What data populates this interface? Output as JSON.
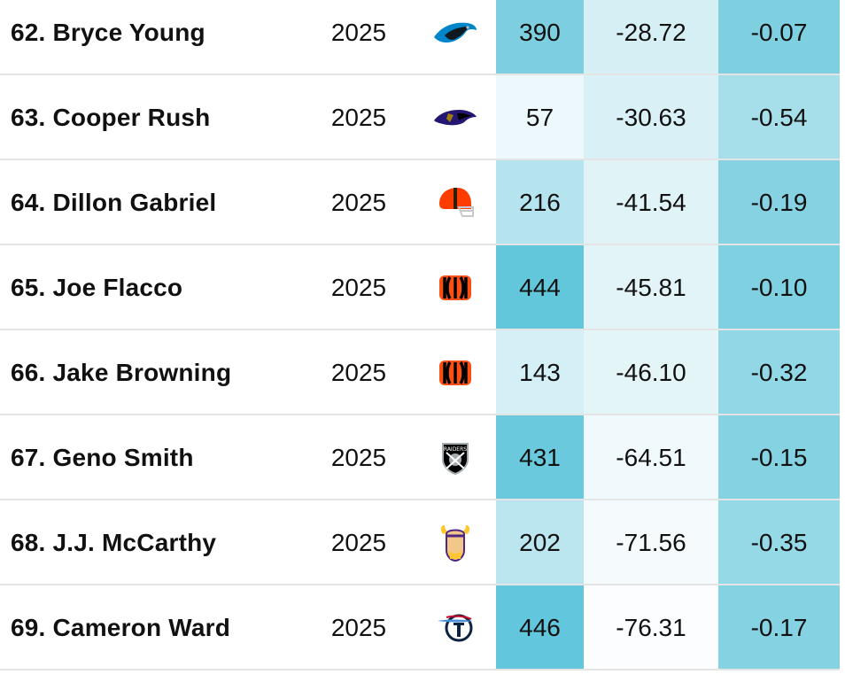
{
  "rows": [
    {
      "name": "62. Bryce Young",
      "season": "2025",
      "team_logo": "panthers-logo",
      "plays": "390",
      "epa": "-28.72",
      "epa_per_play": "-0.07",
      "colors": {
        "plays": "#7dcfe0",
        "epa": "#d6eff5",
        "epa_per_play": "#7ecfe0"
      }
    },
    {
      "name": "63. Cooper Rush",
      "season": "2025",
      "team_logo": "ravens-logo",
      "plays": "57",
      "epa": "-30.63",
      "epa_per_play": "-0.54",
      "colors": {
        "plays": "#ecf8fb",
        "epa": "#d9f0f6",
        "epa_per_play": "#a6dfea"
      }
    },
    {
      "name": "64. Dillon Gabriel",
      "season": "2025",
      "team_logo": "browns-logo",
      "plays": "216",
      "epa": "-41.54",
      "epa_per_play": "-0.19",
      "colors": {
        "plays": "#b5e3ee",
        "epa": "#e0f3f7",
        "epa_per_play": "#86d2e2"
      }
    },
    {
      "name": "65. Joe Flacco",
      "season": "2025",
      "team_logo": "bengals-logo",
      "plays": "444",
      "epa": "-45.81",
      "epa_per_play": "-0.10",
      "colors": {
        "plays": "#63c7dc",
        "epa": "#e3f4f8",
        "epa_per_play": "#7fd0e1"
      }
    },
    {
      "name": "66. Jake Browning",
      "season": "2025",
      "team_logo": "bengals-logo",
      "plays": "143",
      "epa": "-46.10",
      "epa_per_play": "-0.32",
      "colors": {
        "plays": "#d4eff5",
        "epa": "#e4f5f8",
        "epa_per_play": "#92d7e5"
      }
    },
    {
      "name": "67. Geno Smith",
      "season": "2025",
      "team_logo": "raiders-logo",
      "plays": "431",
      "epa": "-64.51",
      "epa_per_play": "-0.15",
      "colors": {
        "plays": "#6ac9dd",
        "epa": "#f0f9fb",
        "epa_per_play": "#84d2e2"
      }
    },
    {
      "name": "68. J.J. McCarthy",
      "season": "2025",
      "team_logo": "vikings-logo",
      "plays": "202",
      "epa": "-71.56",
      "epa_per_play": "-0.35",
      "colors": {
        "plays": "#bbe5ef",
        "epa": "#f5fbfc",
        "epa_per_play": "#95d8e6"
      }
    },
    {
      "name": "69. Cameron Ward",
      "season": "2025",
      "team_logo": "titans-logo",
      "plays": "446",
      "epa": "-76.31",
      "epa_per_play": "-0.17",
      "colors": {
        "plays": "#62c6dc",
        "epa": "#fbfdfe",
        "epa_per_play": "#85d2e2"
      }
    }
  ]
}
